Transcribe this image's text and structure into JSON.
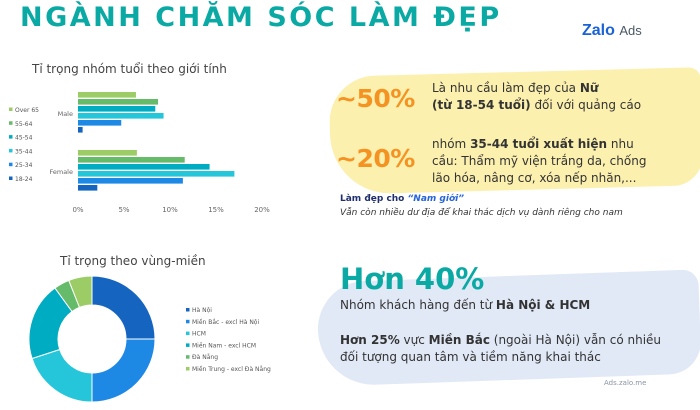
{
  "header": {
    "title": "NGÀNH CHĂM SÓC LÀM ĐẸP",
    "brand_bold": "Zalo",
    "brand_light": "Ads"
  },
  "colors": {
    "title": "#0aa9a4",
    "accent": "#f59322",
    "series": [
      "#1565c0",
      "#1e88e5",
      "#26c6da",
      "#00acc1",
      "#66bb6a",
      "#9ccc65"
    ]
  },
  "chart_data": [
    {
      "type": "bar",
      "orientation": "horizontal",
      "title": "Tỉ trọng nhóm tuổi theo giới tính",
      "categories": [
        "Male",
        "Female"
      ],
      "series": [
        {
          "name": "18-24",
          "values": [
            0.5,
            2.1
          ]
        },
        {
          "name": "25-34",
          "values": [
            4.7,
            11.4
          ]
        },
        {
          "name": "35-44",
          "values": [
            9.3,
            17.0
          ]
        },
        {
          "name": "45-54",
          "values": [
            8.4,
            14.3
          ]
        },
        {
          "name": "55-64",
          "values": [
            8.7,
            11.6
          ]
        },
        {
          "name": "Over 65",
          "values": [
            6.3,
            6.4
          ]
        }
      ],
      "x_ticks": [
        "0%",
        "5%",
        "10%",
        "15%",
        "20%"
      ],
      "xlim": [
        0,
        20
      ],
      "legend": "left"
    },
    {
      "type": "pie",
      "variant": "donut",
      "title": "Tỉ trọng theo vùng-miền",
      "labels": [
        "Hà Nội",
        "Miền Bắc - excl Hà Nội",
        "HCM",
        "Miền Nam - excl HCM",
        "Đà Nẵng",
        "Miền Trung - excl Đà Nẵng"
      ],
      "values": [
        25,
        25,
        20,
        20,
        4,
        6
      ],
      "legend": "right"
    }
  ],
  "insights": {
    "stat1": {
      "value": "~50%",
      "line1_pre": "Là nhu cầu làm đẹp của ",
      "line1_bold": "Nữ",
      "line2_bold": "(từ 18-54 tuổi)",
      "line2_post": " đối với quảng cáo"
    },
    "stat2": {
      "value": "~20%",
      "line1_pre": "nhóm ",
      "line1_bold": "35-44 tuổi xuất hiện",
      "line1_post": " nhu",
      "line2": "cầu: Thẩm mỹ viện trắng da, chống",
      "line3": "lão hóa, nâng cơ, xóa nếp nhăn,..."
    },
    "sub_title_pre": "Làm đẹp cho ",
    "sub_title_quote": "“Nam giới”",
    "sub_note": "Vẫn còn nhiều dư địa để khai thác dịch vụ dành riêng cho nam",
    "big_stat": "Hơn 40%",
    "region_line_pre": "Nhóm khách hàng đến từ ",
    "region_line_bold": "Hà Nội & HCM",
    "north_bold1": "Hơn 25%",
    "north_pre": " vực ",
    "north_bold2": "Miền Bắc",
    "north_post": " (ngoài Hà Nội) vẫn có nhiều",
    "north_line2": "đối tượng quan tâm và tiềm năng khai thác",
    "source": "Ads.zalo.me"
  }
}
